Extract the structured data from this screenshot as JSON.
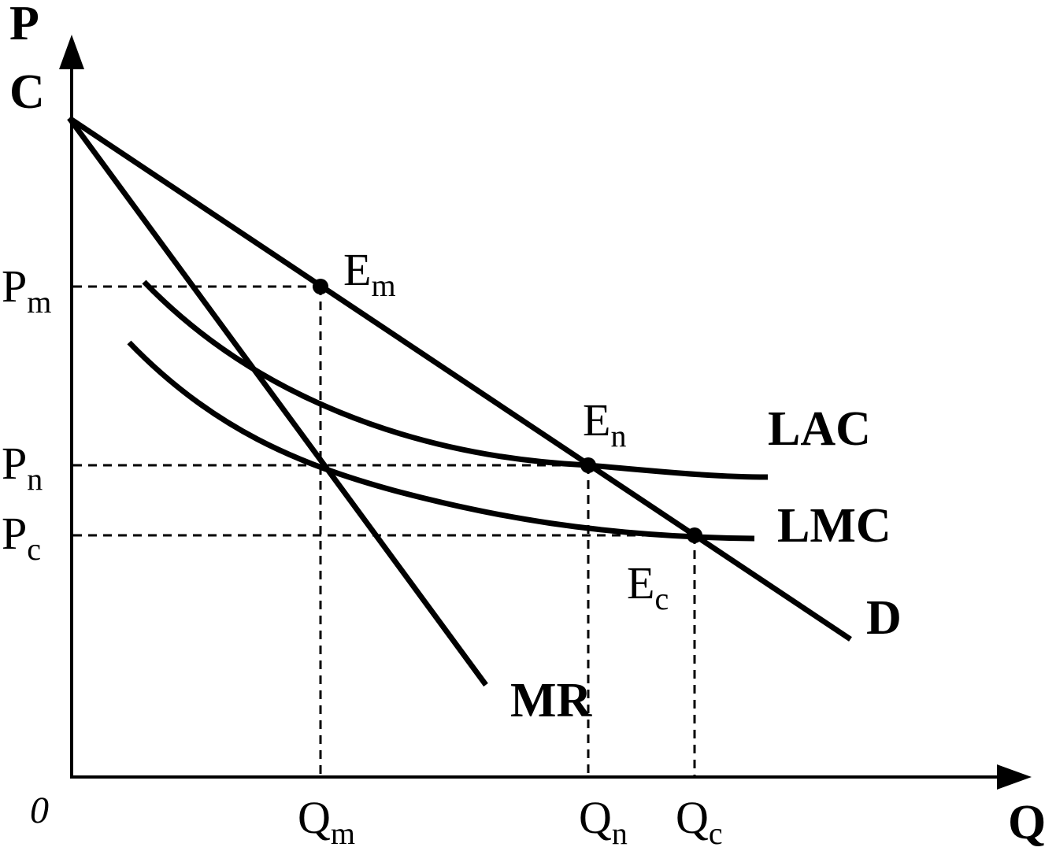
{
  "axes": {
    "y_label_line1": "P",
    "y_label_line2": "C",
    "x_label": "Q",
    "origin": "0"
  },
  "curves": {
    "demand": "D",
    "marginal_revenue": "MR",
    "long_run_average_cost": "LAC",
    "long_run_marginal_cost": "LMC"
  },
  "points": {
    "Em": {
      "base": "E",
      "sub": "m"
    },
    "En": {
      "base": "E",
      "sub": "n"
    },
    "Ec": {
      "base": "E",
      "sub": "c"
    }
  },
  "price_levels": {
    "Pm": {
      "base": "P",
      "sub": "m"
    },
    "Pn": {
      "base": "P",
      "sub": "n"
    },
    "Pc": {
      "base": "P",
      "sub": "c"
    }
  },
  "quantity_levels": {
    "Qm": {
      "base": "Q",
      "sub": "m"
    },
    "Qn": {
      "base": "Q",
      "sub": "n"
    },
    "Qc": {
      "base": "Q",
      "sub": "c"
    }
  }
}
